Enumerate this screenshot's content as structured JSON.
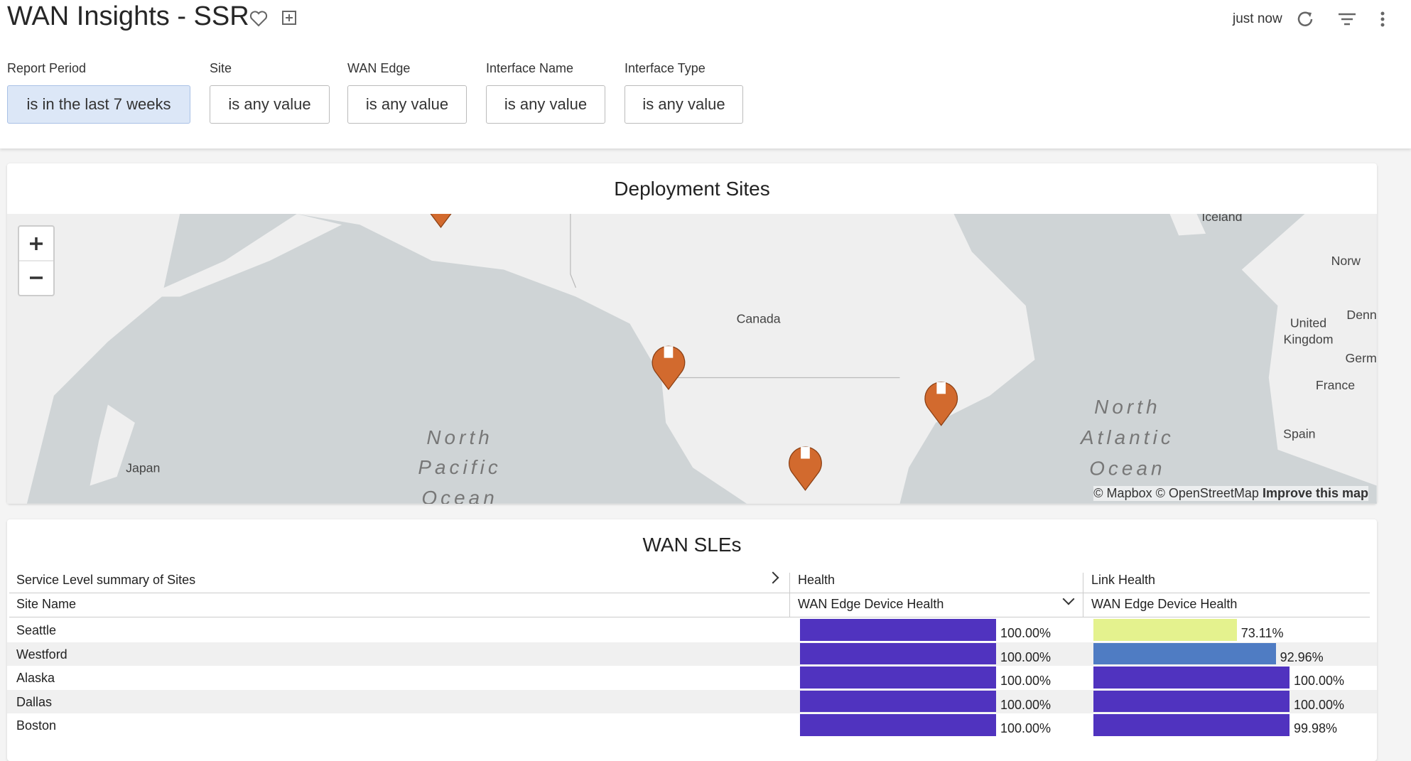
{
  "header": {
    "title": "WAN Insights - SSR",
    "updated": "just now"
  },
  "filters": [
    {
      "label": "Report Period",
      "value": "is in the last 7 weeks"
    },
    {
      "label": "Site",
      "value": "is any value"
    },
    {
      "label": "WAN Edge",
      "value": "is any value"
    },
    {
      "label": "Interface Name",
      "value": "is any value"
    },
    {
      "label": "Interface Type",
      "value": "is any value"
    }
  ],
  "map": {
    "title": "Deployment Sites",
    "labels": [
      "Iceland",
      "Norw",
      "Canada",
      "United",
      "Kingdom",
      "Denn",
      "Germ",
      "France",
      "North",
      "Atlantic",
      "Ocean",
      "Spain",
      "Japan",
      "North",
      "Pacific",
      "Ocean"
    ],
    "attribution": "© Mapbox © OpenStreetMap",
    "improve": "Improve this map"
  },
  "table": {
    "title": "WAN SLEs",
    "group_headers": [
      "Service Level summary of Sites",
      "Health",
      "Link Health"
    ],
    "columns": [
      "Site Name",
      "WAN Edge Device Health",
      "WAN Edge Device Health"
    ],
    "rows": [
      {
        "site": "Seattle",
        "health": {
          "value": 100,
          "label": "100.00%",
          "color": "#5033bf"
        },
        "link_health": {
          "value": 73.11,
          "label": "73.11%",
          "color": "#e4f28e"
        }
      },
      {
        "site": "Westford",
        "health": {
          "value": 100,
          "label": "100.00%",
          "color": "#5033bf"
        },
        "link_health": {
          "value": 92.96,
          "label": "92.96%",
          "color": "#4f7cc3"
        }
      },
      {
        "site": "Alaska",
        "health": {
          "value": 100,
          "label": "100.00%",
          "color": "#5033bf"
        },
        "link_health": {
          "value": 100,
          "label": "100.00%",
          "color": "#5033bf"
        }
      },
      {
        "site": "Dallas",
        "health": {
          "value": 100,
          "label": "100.00%",
          "color": "#5033bf"
        },
        "link_health": {
          "value": 100,
          "label": "100.00%",
          "color": "#5033bf"
        }
      },
      {
        "site": "Boston",
        "health": {
          "value": 100,
          "label": "100.00%",
          "color": "#5033bf"
        },
        "link_health": {
          "value": 99.98,
          "label": "99.98%",
          "color": "#5033bf"
        }
      }
    ]
  }
}
